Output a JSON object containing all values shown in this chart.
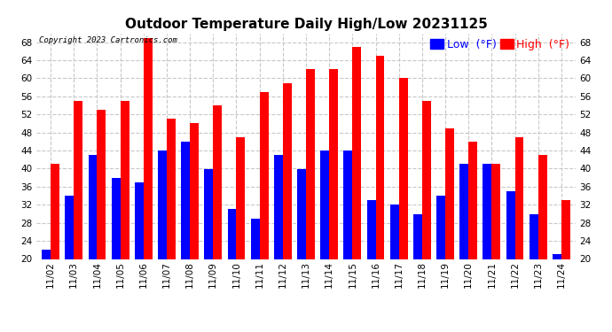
{
  "title": "Outdoor Temperature Daily High/Low 20231125",
  "copyright": "Copyright 2023 Cartronics.com",
  "legend_unit": "(°F)",
  "ylim": [
    20.0,
    70.0
  ],
  "yticks": [
    20.0,
    24.0,
    28.0,
    32.0,
    36.0,
    40.0,
    44.0,
    48.0,
    52.0,
    56.0,
    60.0,
    64.0,
    68.0
  ],
  "dates": [
    "11/02",
    "11/03",
    "11/04",
    "11/05",
    "11/06",
    "11/07",
    "11/08",
    "11/09",
    "11/10",
    "11/11",
    "11/12",
    "11/13",
    "11/14",
    "11/15",
    "11/16",
    "11/17",
    "11/18",
    "11/19",
    "11/20",
    "11/21",
    "11/22",
    "11/23",
    "11/24"
  ],
  "high_values": [
    41,
    55,
    53,
    55,
    69,
    51,
    50,
    54,
    47,
    57,
    59,
    62,
    62,
    67,
    65,
    60,
    55,
    49,
    46,
    41,
    47,
    43,
    33
  ],
  "low_values": [
    22,
    34,
    43,
    38,
    37,
    44,
    46,
    40,
    31,
    29,
    43,
    40,
    44,
    44,
    33,
    32,
    30,
    34,
    41,
    41,
    35,
    30,
    21
  ],
  "high_color": "#ff0000",
  "low_color": "#0000ff",
  "bg_color": "#ffffff",
  "grid_color": "#c8c8c8",
  "bar_width": 0.38,
  "ymin": 20.0,
  "title_fontsize": 11,
  "tick_fontsize": 7.5,
  "legend_fontsize": 9
}
